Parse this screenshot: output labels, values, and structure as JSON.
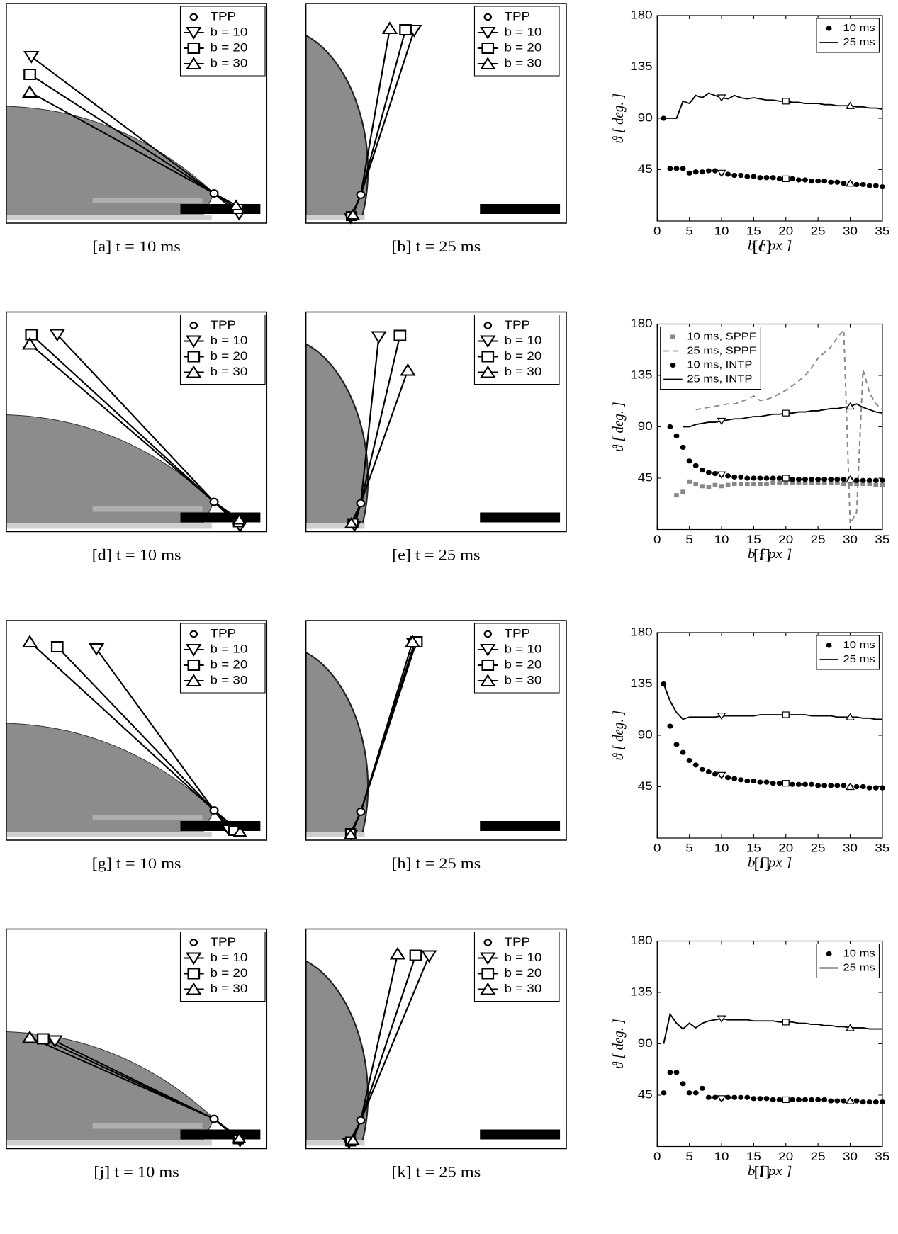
{
  "image_legend": [
    "TPP",
    "b = 10",
    "b = 20",
    "b = 30"
  ],
  "image_panels": [
    {
      "caption": "[a] t = 10 ms"
    },
    {
      "caption": "[b] t = 25 ms"
    },
    {
      "caption": "[d] t = 10 ms"
    },
    {
      "caption": "[e] t = 25 ms"
    },
    {
      "caption": "[g] t = 10 ms"
    },
    {
      "caption": "[h] t = 25 ms"
    },
    {
      "caption": "[j] t = 10 ms"
    },
    {
      "caption": "[k] t = 25 ms"
    }
  ],
  "chart_data": [
    {
      "type": "line",
      "caption": "[c]",
      "xlabel": "b [ px ]",
      "ylabel": "ϑ [ deg. ]",
      "xlim": [
        0,
        35
      ],
      "xticks": [
        0,
        5,
        10,
        15,
        20,
        25,
        30,
        35
      ],
      "ylim": [
        0,
        180
      ],
      "yticks": [
        45,
        90,
        135,
        180
      ],
      "legend": "upper right",
      "marked_x": [
        10,
        20,
        30
      ],
      "x": [
        1,
        2,
        3,
        4,
        5,
        6,
        7,
        8,
        9,
        10,
        11,
        12,
        13,
        14,
        15,
        16,
        17,
        18,
        19,
        20,
        21,
        22,
        23,
        24,
        25,
        26,
        27,
        28,
        29,
        30,
        31,
        32,
        33,
        34,
        35
      ],
      "series": [
        {
          "name": "10 ms",
          "style": "dots",
          "color": "#000000",
          "markers": true,
          "values": [
            90,
            46,
            46,
            46,
            42,
            43,
            43,
            44,
            44,
            42,
            41,
            40,
            40,
            39,
            39,
            38,
            38,
            38,
            37,
            37,
            37,
            36,
            36,
            35,
            35,
            35,
            34,
            34,
            33,
            33,
            32,
            32,
            31,
            31,
            30
          ]
        },
        {
          "name": "25 ms",
          "style": "line",
          "color": "#000000",
          "markers": true,
          "values": [
            90,
            90,
            90,
            105,
            103,
            110,
            108,
            112,
            110,
            108,
            107,
            110,
            108,
            107,
            108,
            107,
            106,
            106,
            105,
            105,
            104,
            104,
            103,
            103,
            103,
            102,
            102,
            101,
            101,
            101,
            100,
            100,
            99,
            99,
            98
          ]
        }
      ]
    },
    {
      "type": "line",
      "caption": "[f]",
      "xlabel": "b [ px ]",
      "ylabel": "ϑ [ deg. ]",
      "xlim": [
        0,
        35
      ],
      "xticks": [
        0,
        5,
        10,
        15,
        20,
        25,
        30,
        35
      ],
      "ylim": [
        0,
        180
      ],
      "yticks": [
        45,
        90,
        135,
        180
      ],
      "legend": "upper left",
      "marked_x": [
        10,
        20,
        30
      ],
      "x": [
        1,
        2,
        3,
        4,
        5,
        6,
        7,
        8,
        9,
        10,
        11,
        12,
        13,
        14,
        15,
        16,
        17,
        18,
        19,
        20,
        21,
        22,
        23,
        24,
        25,
        26,
        27,
        28,
        29,
        30,
        31,
        32,
        33,
        34,
        35
      ],
      "series": [
        {
          "name": "10 ms, SPPF",
          "style": "squares",
          "color": "#888888",
          "markers": false,
          "values": [
            null,
            null,
            30,
            33,
            42,
            40,
            38,
            37,
            39,
            38,
            39,
            40,
            40,
            40,
            40,
            40,
            40,
            41,
            41,
            41,
            41,
            41,
            41,
            41,
            41,
            41,
            41,
            41,
            40,
            40,
            40,
            40,
            40,
            39,
            39
          ]
        },
        {
          "name": "25 ms, SPPF",
          "style": "dashed",
          "color": "#888888",
          "markers": false,
          "values": [
            null,
            null,
            null,
            null,
            null,
            105,
            106,
            107,
            108,
            109,
            110,
            110,
            112,
            114,
            117,
            113,
            114,
            116,
            119,
            122,
            126,
            130,
            135,
            142,
            150,
            155,
            160,
            168,
            175,
            5,
            15,
            140,
            120,
            110,
            105
          ]
        },
        {
          "name": "10 ms, INTP",
          "style": "dots",
          "color": "#000000",
          "markers": true,
          "values": [
            null,
            90,
            82,
            72,
            60,
            56,
            52,
            50,
            49,
            48,
            47,
            46,
            46,
            45,
            45,
            45,
            45,
            45,
            45,
            45,
            44,
            44,
            44,
            44,
            44,
            44,
            44,
            44,
            44,
            44,
            43,
            43,
            43,
            43,
            43
          ]
        },
        {
          "name": "25 ms, INTP",
          "style": "line",
          "color": "#000000",
          "markers": true,
          "values": [
            null,
            null,
            null,
            90,
            90,
            92,
            93,
            94,
            94,
            95,
            96,
            97,
            97,
            98,
            99,
            99,
            100,
            101,
            101,
            102,
            102,
            103,
            103,
            104,
            104,
            105,
            106,
            106,
            107,
            108,
            110,
            107,
            105,
            103,
            102
          ]
        }
      ]
    },
    {
      "type": "line",
      "caption": "[i]",
      "xlabel": "b [ px ]",
      "ylabel": "ϑ [ deg. ]",
      "xlim": [
        0,
        35
      ],
      "xticks": [
        0,
        5,
        10,
        15,
        20,
        25,
        30,
        35
      ],
      "ylim": [
        0,
        180
      ],
      "yticks": [
        45,
        90,
        135,
        180
      ],
      "legend": "upper right",
      "marked_x": [
        10,
        20,
        30
      ],
      "x": [
        1,
        2,
        3,
        4,
        5,
        6,
        7,
        8,
        9,
        10,
        11,
        12,
        13,
        14,
        15,
        16,
        17,
        18,
        19,
        20,
        21,
        22,
        23,
        24,
        25,
        26,
        27,
        28,
        29,
        30,
        31,
        32,
        33,
        34,
        35
      ],
      "series": [
        {
          "name": "10 ms",
          "style": "dots",
          "color": "#000000",
          "markers": true,
          "values": [
            135,
            98,
            82,
            75,
            68,
            64,
            60,
            58,
            56,
            55,
            53,
            52,
            51,
            50,
            50,
            49,
            49,
            48,
            48,
            48,
            47,
            47,
            47,
            47,
            46,
            46,
            46,
            46,
            46,
            45,
            45,
            45,
            44,
            44,
            44
          ]
        },
        {
          "name": "25 ms",
          "style": "line",
          "color": "#000000",
          "markers": true,
          "values": [
            135,
            120,
            110,
            104,
            106,
            106,
            106,
            106,
            106,
            107,
            107,
            107,
            107,
            107,
            107,
            108,
            108,
            108,
            108,
            108,
            108,
            108,
            108,
            107,
            107,
            107,
            107,
            106,
            106,
            106,
            106,
            105,
            105,
            104,
            104
          ]
        }
      ]
    },
    {
      "type": "line",
      "caption": "[l]",
      "xlabel": "b [ px ]",
      "ylabel": "ϑ [ deg. ]",
      "xlim": [
        0,
        35
      ],
      "xticks": [
        0,
        5,
        10,
        15,
        20,
        25,
        30,
        35
      ],
      "ylim": [
        0,
        180
      ],
      "yticks": [
        45,
        90,
        135,
        180
      ],
      "legend": "upper right",
      "marked_x": [
        10,
        20,
        30
      ],
      "x": [
        1,
        2,
        3,
        4,
        5,
        6,
        7,
        8,
        9,
        10,
        11,
        12,
        13,
        14,
        15,
        16,
        17,
        18,
        19,
        20,
        21,
        22,
        23,
        24,
        25,
        26,
        27,
        28,
        29,
        30,
        31,
        32,
        33,
        34,
        35
      ],
      "series": [
        {
          "name": "10 ms",
          "style": "dots",
          "color": "#000000",
          "markers": true,
          "values": [
            47,
            65,
            65,
            55,
            47,
            47,
            51,
            43,
            43,
            42,
            43,
            43,
            43,
            43,
            42,
            42,
            42,
            41,
            41,
            41,
            41,
            41,
            41,
            41,
            41,
            41,
            40,
            40,
            40,
            40,
            40,
            39,
            39,
            39,
            39
          ]
        },
        {
          "name": "25 ms",
          "style": "line",
          "color": "#000000",
          "markers": true,
          "values": [
            90,
            116,
            108,
            103,
            108,
            104,
            108,
            110,
            111,
            112,
            111,
            111,
            111,
            111,
            110,
            110,
            110,
            110,
            109,
            109,
            109,
            108,
            108,
            107,
            107,
            106,
            106,
            105,
            105,
            104,
            104,
            104,
            103,
            103,
            103
          ]
        }
      ]
    }
  ]
}
